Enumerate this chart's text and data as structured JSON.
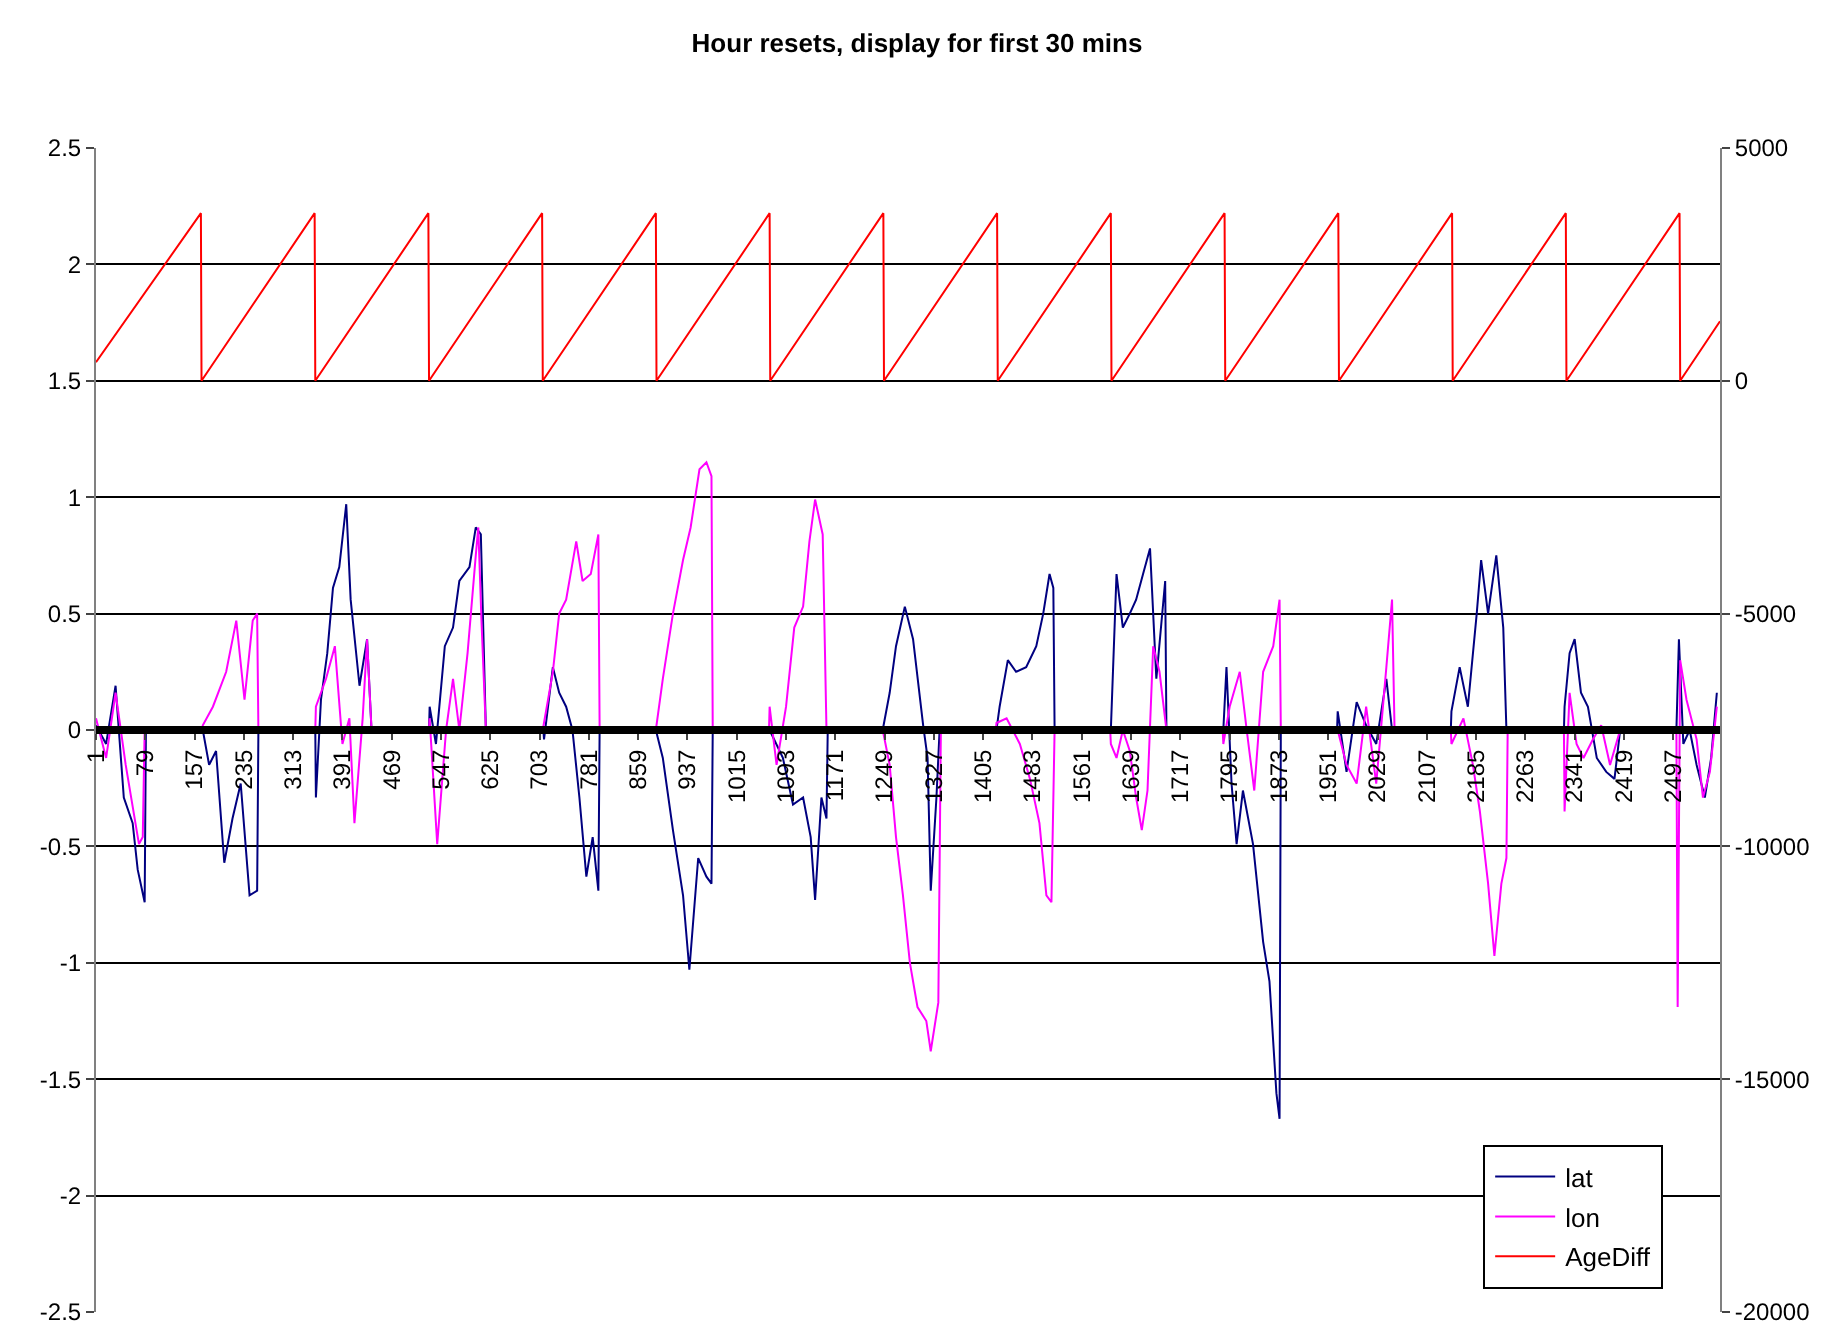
{
  "chart_data": {
    "type": "line",
    "title": "Hour resets, display for first 30 mins",
    "xlim": [
      1,
      2571
    ],
    "xticks": [
      1,
      79,
      157,
      235,
      313,
      391,
      469,
      547,
      625,
      703,
      781,
      859,
      937,
      1015,
      1093,
      1171,
      1249,
      1327,
      1405,
      1483,
      1561,
      1639,
      1717,
      1795,
      1873,
      1951,
      2029,
      2107,
      2185,
      2263,
      2341,
      2419,
      2497
    ],
    "ylim": [
      -2.5,
      2.5
    ],
    "yticks": [
      -2.5,
      -2,
      -1.5,
      -1,
      -0.5,
      0,
      0.5,
      1,
      1.5,
      2,
      2.5
    ],
    "y2lim": [
      -20000,
      5000
    ],
    "y2ticks": [
      -20000,
      -15000,
      -10000,
      -5000,
      0,
      5000
    ],
    "grid": "y",
    "legend": "bottom right",
    "marker": "none",
    "line_style": "solid",
    "series": [
      {
        "name": "lat",
        "color": "#000080",
        "x": [
          1,
          17,
          32,
          45,
          59,
          67,
          78,
          80,
          170,
          180,
          191,
          204,
          217,
          230,
          244,
          256,
          258,
          348,
          349,
          357,
          367,
          376,
          386,
          397,
          404,
          418,
          430,
          437,
          528,
          529,
          539,
          553,
          566,
          576,
          592,
          602,
          610,
          618,
          709,
          710,
          724,
          734,
          745,
          755,
          766,
          777,
          787,
          796,
          798,
          887,
          898,
          914,
          930,
          940,
          954,
          967,
          975,
          977,
          1067,
          1088,
          1104,
          1120,
          1132,
          1139,
          1149,
          1157,
          1159,
          1246,
          1257,
          1267,
          1281,
          1294,
          1310,
          1317,
          1322,
          1331,
          1336,
          1426,
          1431,
          1444,
          1457,
          1473,
          1489,
          1500,
          1510,
          1516,
          1518,
          1607,
          1616,
          1626,
          1637,
          1647,
          1658,
          1669,
          1679,
          1693,
          1695,
          1785,
          1790,
          1798,
          1806,
          1816,
          1832,
          1848,
          1858,
          1869,
          1874,
          1876,
          1965,
          1966,
          1980,
          1996,
          2011,
          2027,
          2043,
          2052,
          2145,
          2146,
          2159,
          2172,
          2186,
          2193,
          2204,
          2217,
          2228,
          2233,
          2324,
          2325,
          2333,
          2341,
          2351,
          2362,
          2376,
          2391,
          2404,
          2413,
          2502,
          2506,
          2513,
          2523,
          2534,
          2547,
          2557,
          2566
        ],
        "values": [
          0.02,
          -0.06,
          0.19,
          -0.29,
          -0.4,
          -0.6,
          -0.74,
          0,
          0,
          -0.15,
          -0.09,
          -0.57,
          -0.38,
          -0.23,
          -0.71,
          -0.69,
          0,
          0,
          -0.29,
          0.13,
          0.33,
          0.61,
          0.7,
          0.97,
          0.56,
          0.19,
          0.39,
          0,
          0,
          0.1,
          -0.06,
          0.36,
          0.44,
          0.64,
          0.7,
          0.87,
          0.84,
          0,
          0,
          -0.04,
          0.27,
          0.16,
          0.1,
          0,
          -0.29,
          -0.63,
          -0.46,
          -0.69,
          0,
          0,
          -0.12,
          -0.43,
          -0.71,
          -1.03,
          -0.55,
          -0.63,
          -0.66,
          0,
          0,
          -0.12,
          -0.32,
          -0.29,
          -0.46,
          -0.73,
          -0.29,
          -0.38,
          0,
          0,
          0.16,
          0.36,
          0.53,
          0.39,
          0.02,
          -0.12,
          -0.69,
          -0.29,
          0,
          0,
          0.1,
          0.3,
          0.25,
          0.27,
          0.36,
          0.5,
          0.67,
          0.61,
          0,
          0,
          0.67,
          0.44,
          0.5,
          0.56,
          0.67,
          0.78,
          0.22,
          0.64,
          0,
          0,
          0.27,
          -0.23,
          -0.49,
          -0.26,
          -0.49,
          -0.91,
          -1.08,
          -1.56,
          -1.67,
          0,
          0,
          0.08,
          -0.18,
          0.12,
          0.02,
          -0.06,
          0.22,
          0,
          0,
          0.08,
          0.27,
          0.1,
          0.5,
          0.73,
          0.5,
          0.75,
          0.44,
          0,
          0,
          0.1,
          0.33,
          0.39,
          0.16,
          0.1,
          -0.12,
          -0.18,
          -0.21,
          0,
          0,
          0.39,
          -0.06,
          0,
          -0.15,
          -0.29,
          -0.12,
          0.16
        ]
      },
      {
        "name": "lon",
        "color": "#ff00ff",
        "x": [
          1,
          17,
          32,
          48,
          69,
          75,
          78,
          169,
          170,
          186,
          207,
          223,
          236,
          249,
          256,
          258,
          348,
          349,
          365,
          379,
          391,
          402,
          410,
          423,
          430,
          437,
          528,
          529,
          541,
          555,
          566,
          576,
          589,
          602,
          606,
          611,
          618,
          708,
          724,
          734,
          745,
          761,
          771,
          784,
          796,
          798,
          887,
          898,
          914,
          930,
          942,
          956,
          967,
          975,
          977,
          1066,
          1067,
          1078,
          1093,
          1106,
          1120,
          1130,
          1139,
          1151,
          1157,
          1246,
          1257,
          1267,
          1278,
          1289,
          1301,
          1315,
          1322,
          1334,
          1338,
          1425,
          1426,
          1442,
          1463,
          1479,
          1494,
          1505,
          1513,
          1518,
          1606,
          1607,
          1616,
          1626,
          1637,
          1647,
          1656,
          1665,
          1674,
          1684,
          1695,
          1784,
          1785,
          1795,
          1811,
          1822,
          1834,
          1848,
          1864,
          1874,
          1876,
          1966,
          1980,
          1996,
          2011,
          2027,
          2043,
          2052,
          2056,
          2145,
          2146,
          2165,
          2180,
          2191,
          2204,
          2214,
          2225,
          2233,
          2235,
          2324,
          2325,
          2333,
          2344,
          2355,
          2370,
          2383,
          2397,
          2413,
          2502,
          2504,
          2508,
          2518,
          2534,
          2544,
          2555,
          2566
        ],
        "values": [
          0.05,
          -0.12,
          0.16,
          -0.15,
          -0.49,
          -0.46,
          0,
          0,
          0.02,
          0.1,
          0.25,
          0.47,
          0.13,
          0.47,
          0.5,
          0,
          0,
          0.1,
          0.22,
          0.36,
          -0.06,
          0.05,
          -0.4,
          0.05,
          0.39,
          0,
          0,
          0.05,
          -0.49,
          0,
          0.22,
          0,
          0.33,
          0.75,
          0.87,
          0.47,
          0,
          0,
          0.25,
          0.5,
          0.56,
          0.81,
          0.64,
          0.67,
          0.84,
          0,
          0,
          0.22,
          0.5,
          0.73,
          0.87,
          1.12,
          1.15,
          1.09,
          0,
          0,
          0.1,
          -0.15,
          0.1,
          0.44,
          0.53,
          0.81,
          0.99,
          0.84,
          0,
          0,
          -0.15,
          -0.46,
          -0.71,
          -1.0,
          -1.19,
          -1.25,
          -1.38,
          -1.17,
          0,
          0,
          0.03,
          0.05,
          -0.06,
          -0.21,
          -0.4,
          -0.71,
          -0.74,
          0,
          0,
          -0.06,
          -0.12,
          0,
          -0.09,
          -0.29,
          -0.43,
          -0.26,
          0.36,
          0.25,
          0,
          0,
          -0.06,
          0.1,
          0.25,
          0,
          -0.26,
          0.25,
          0.36,
          0.56,
          0,
          0,
          -0.15,
          -0.23,
          0.1,
          -0.23,
          0.27,
          0.56,
          0,
          0,
          -0.06,
          0.05,
          -0.15,
          -0.35,
          -0.66,
          -0.97,
          -0.66,
          -0.55,
          0,
          0,
          -0.35,
          0.16,
          -0.06,
          -0.12,
          -0.04,
          0.02,
          -0.15,
          0,
          0,
          -1.19,
          0.3,
          0.13,
          -0.04,
          -0.29,
          -0.18,
          0.1
        ]
      },
      {
        "name": "AgeDiff",
        "color": "#ff0000",
        "axis": "y2",
        "x": [
          1,
          167,
          168,
          347,
          348,
          527,
          528,
          707,
          708,
          887,
          888,
          1067,
          1068,
          1247,
          1248,
          1427,
          1428,
          1607,
          1608,
          1787,
          1788,
          1967,
          1968,
          2147,
          2148,
          2327,
          2328,
          2507,
          2508,
          2571
        ],
        "values": [
          400,
          3600,
          0,
          3600,
          0,
          3600,
          0,
          3600,
          0,
          3600,
          0,
          3600,
          0,
          3600,
          0,
          3600,
          0,
          3600,
          0,
          3600,
          0,
          3600,
          0,
          3600,
          0,
          3600,
          0,
          3600,
          0,
          1280
        ]
      }
    ]
  }
}
